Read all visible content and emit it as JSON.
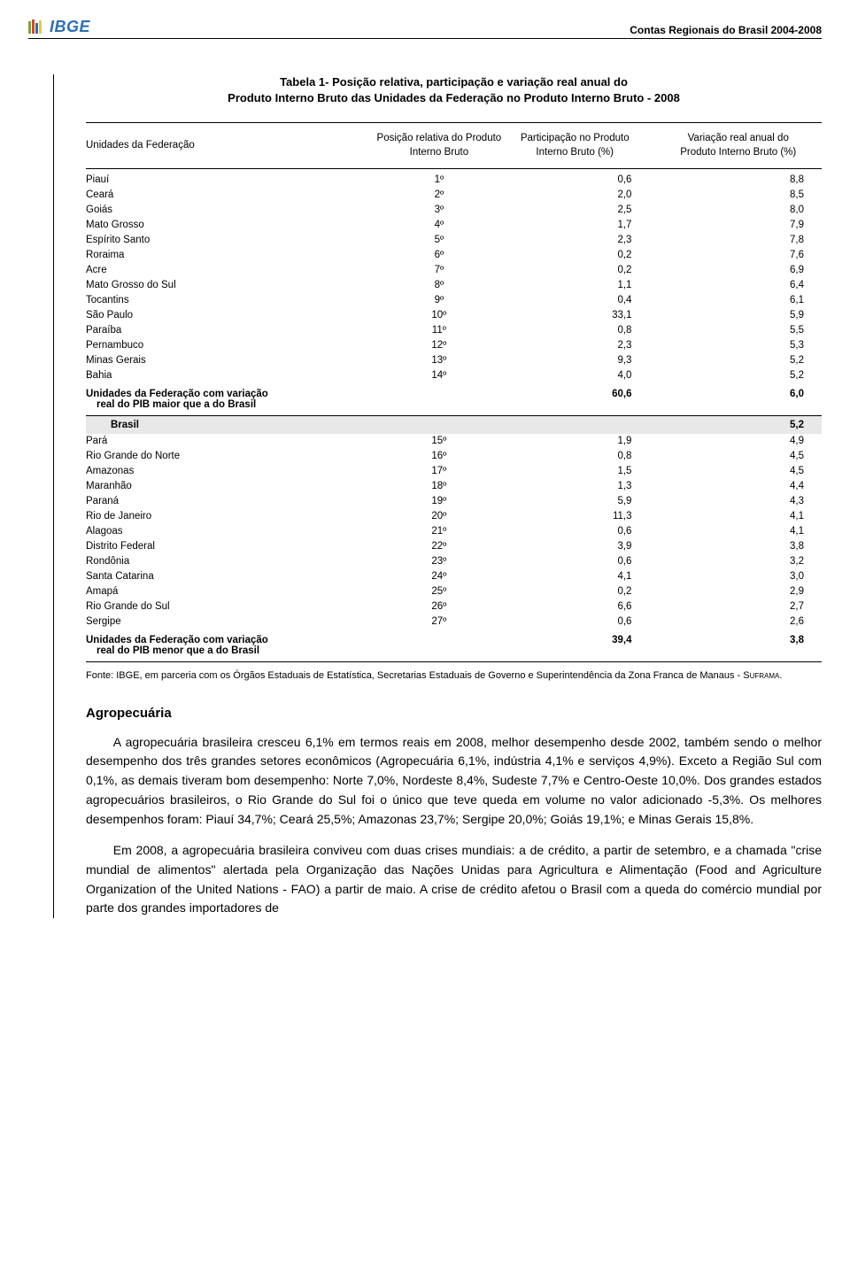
{
  "header": {
    "logo_text": "IBGE",
    "doc_title": "Contas Regionais do Brasil 2004-2008"
  },
  "table": {
    "title_line1": "Tabela 1- Posição relativa, participação e variação real anual do",
    "title_line2": "Produto Interno Bruto das Unidades da Federação no Produto Interno Bruto - 2008",
    "columns": {
      "c1": "Unidades da Federação",
      "c2": "Posição relativa do Produto Interno Bruto",
      "c3": "Participação no Produto Interno Bruto (%)",
      "c4": "Variação real anual do Produto Interno Bruto (%)"
    },
    "upper_rows": [
      {
        "name": "Piauí",
        "pos": "1º",
        "part": "0,6",
        "var": "8,8"
      },
      {
        "name": "Ceará",
        "pos": "2º",
        "part": "2,0",
        "var": "8,5"
      },
      {
        "name": "Goiás",
        "pos": "3º",
        "part": "2,5",
        "var": "8,0"
      },
      {
        "name": "Mato Grosso",
        "pos": "4º",
        "part": "1,7",
        "var": "7,9"
      },
      {
        "name": "Espírito Santo",
        "pos": "5º",
        "part": "2,3",
        "var": "7,8"
      },
      {
        "name": "Roraima",
        "pos": "6º",
        "part": "0,2",
        "var": "7,6"
      },
      {
        "name": "Acre",
        "pos": "7º",
        "part": "0,2",
        "var": "6,9"
      },
      {
        "name": "Mato Grosso do Sul",
        "pos": "8º",
        "part": "1,1",
        "var": "6,4"
      },
      {
        "name": "Tocantins",
        "pos": "9º",
        "part": "0,4",
        "var": "6,1"
      },
      {
        "name": "São Paulo",
        "pos": "10º",
        "part": "33,1",
        "var": "5,9"
      },
      {
        "name": "Paraíba",
        "pos": "11º",
        "part": "0,8",
        "var": "5,5"
      },
      {
        "name": "Pernambuco",
        "pos": "12º",
        "part": "2,3",
        "var": "5,3"
      },
      {
        "name": "Minas Gerais",
        "pos": "13º",
        "part": "9,3",
        "var": "5,2"
      },
      {
        "name": "Bahia",
        "pos": "14º",
        "part": "4,0",
        "var": "5,2"
      }
    ],
    "summary_above": {
      "l1": "Unidades da Federação com variação",
      "l2": "real do PIB maior que a do Brasil",
      "part": "60,6",
      "var": "6,0"
    },
    "brasil": {
      "name": "Brasil",
      "var": "5,2"
    },
    "lower_rows": [
      {
        "name": "Pará",
        "pos": "15º",
        "part": "1,9",
        "var": "4,9"
      },
      {
        "name": "Rio Grande do Norte",
        "pos": "16º",
        "part": "0,8",
        "var": "4,5"
      },
      {
        "name": "Amazonas",
        "pos": "17º",
        "part": "1,5",
        "var": "4,5"
      },
      {
        "name": "Maranhão",
        "pos": "18º",
        "part": "1,3",
        "var": "4,4"
      },
      {
        "name": "Paraná",
        "pos": "19º",
        "part": "5,9",
        "var": "4,3"
      },
      {
        "name": "Rio de Janeiro",
        "pos": "20º",
        "part": "11,3",
        "var": "4,1"
      },
      {
        "name": "Alagoas",
        "pos": "21º",
        "part": "0,6",
        "var": "4,1"
      },
      {
        "name": "Distrito Federal",
        "pos": "22º",
        "part": "3,9",
        "var": "3,8"
      },
      {
        "name": "Rondônia",
        "pos": "23º",
        "part": "0,6",
        "var": "3,2"
      },
      {
        "name": "Santa Catarina",
        "pos": "24º",
        "part": "4,1",
        "var": "3,0"
      },
      {
        "name": "Amapá",
        "pos": "25º",
        "part": "0,2",
        "var": "2,9"
      },
      {
        "name": "Rio Grande do Sul",
        "pos": "26º",
        "part": "6,6",
        "var": "2,7"
      },
      {
        "name": "Sergipe",
        "pos": "27º",
        "part": "0,6",
        "var": "2,6"
      }
    ],
    "summary_below": {
      "l1": "Unidades da Federação com variação",
      "l2": "real do PIB menor que a do Brasil",
      "part": "39,4",
      "var": "3,8"
    },
    "source": "Fonte: IBGE, em parceria com os Órgãos Estaduais de Estatística, Secretarias Estaduais de Governo e Superintendência da Zona Franca de Manaus - ",
    "source_suf": "Suframa."
  },
  "section": {
    "heading": "Agropecuária",
    "p1": "A agropecuária brasileira cresceu 6,1% em termos reais em 2008, melhor desempenho desde 2002, também sendo o melhor desempenho dos três grandes setores econômicos (Agropecuária 6,1%, indústria 4,1% e serviços 4,9%). Exceto a Região Sul com 0,1%, as demais tiveram bom desempenho: Norte 7,0%, Nordeste 8,4%, Sudeste 7,7% e Centro-Oeste 10,0%. Dos grandes estados agropecuários brasileiros, o Rio Grande do Sul foi o único que teve queda em volume no valor adicionado -5,3%. Os melhores desempenhos foram: Piauí 34,7%; Ceará 25,5%; Amazonas 23,7%; Sergipe 20,0%; Goiás 19,1%; e Minas Gerais 15,8%.",
    "p2": "Em 2008, a agropecuária brasileira conviveu com duas crises mundiais: a de crédito, a partir de setembro, e a chamada \"crise mundial de alimentos\" alertada pela Organização das Nações Unidas para Agricultura e Alimentação (Food and Agriculture Organization of the United Nations - FAO) a partir de maio. A crise de crédito afetou o Brasil com a queda do comércio mundial por parte dos grandes importadores de"
  },
  "colors": {
    "logo": "#2a6fb5",
    "brasil_bg": "#e8e8e8"
  }
}
